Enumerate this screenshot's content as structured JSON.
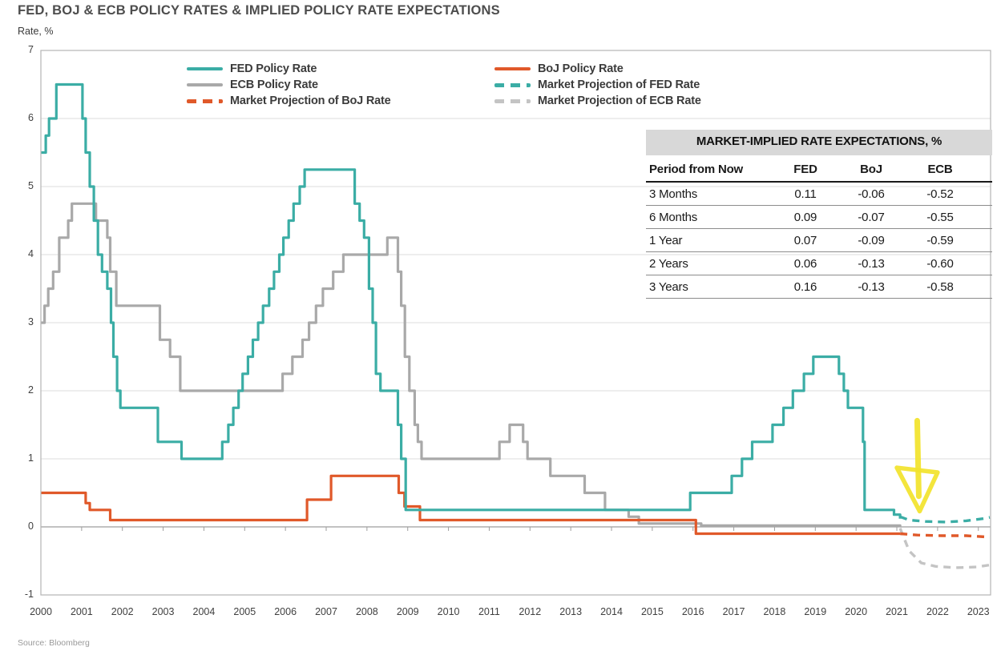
{
  "title": "FED, BOJ & ECB POLICY RATES & IMPLIED POLICY RATE EXPECTATIONS",
  "y_axis_title": "Rate, %",
  "source": "Source: Bloomberg",
  "legend": {
    "items": [
      {
        "label": "FED Policy Rate",
        "color": "#3bada5",
        "dashed": false
      },
      {
        "label": "ECB Policy Rate",
        "color": "#a9a9a9",
        "dashed": false
      },
      {
        "label": "Market Projection of BoJ Rate",
        "color": "#e0592a",
        "dashed": true
      },
      {
        "label": "BoJ Policy Rate",
        "color": "#e0592a",
        "dashed": false
      },
      {
        "label": "Market Projection of FED Rate",
        "color": "#3bada5",
        "dashed": true
      },
      {
        "label": "Market Projection of ECB Rate",
        "color": "#c4c4c4",
        "dashed": true
      }
    ]
  },
  "table": {
    "title": "MARKET-IMPLIED RATE EXPECTATIONS, %",
    "columns": [
      "Period from Now",
      "FED",
      "BoJ",
      "ECB"
    ],
    "rows": [
      {
        "period": "3 Months",
        "fed": "0.11",
        "boj": "-0.06",
        "ecb": "-0.52"
      },
      {
        "period": "6 Months",
        "fed": "0.09",
        "boj": "-0.07",
        "ecb": "-0.55"
      },
      {
        "period": "1 Year",
        "fed": "0.07",
        "boj": "-0.09",
        "ecb": "-0.59"
      },
      {
        "period": "2 Years",
        "fed": "0.06",
        "boj": "-0.13",
        "ecb": "-0.60"
      },
      {
        "period": "3 Years",
        "fed": "0.16",
        "boj": "-0.13",
        "ecb": "-0.58"
      }
    ]
  },
  "chart_data": {
    "type": "line",
    "title": "FED, BOJ & ECB POLICY RATES & IMPLIED POLICY RATE EXPECTATIONS",
    "ylabel": "Rate, %",
    "x_range": [
      2000,
      2023.3
    ],
    "y_range": [
      -1,
      7
    ],
    "y_ticks": [
      7,
      6,
      5,
      4,
      3,
      2,
      1,
      0,
      -1
    ],
    "x_ticks": [
      2000,
      2001,
      2002,
      2003,
      2004,
      2005,
      2006,
      2007,
      2008,
      2009,
      2010,
      2011,
      2012,
      2013,
      2014,
      2015,
      2016,
      2017,
      2018,
      2019,
      2020,
      2021,
      2022,
      2023
    ],
    "grid": "horizontal",
    "legend_position": "top",
    "series": [
      {
        "name": "ECB Policy Rate",
        "color": "#a9a9a9",
        "style": "solid",
        "step": true,
        "width": 3.2,
        "points": [
          [
            2000,
            3
          ],
          [
            2000.09,
            3.25
          ],
          [
            2000.18,
            3.5
          ],
          [
            2000.3,
            3.75
          ],
          [
            2000.45,
            4.25
          ],
          [
            2000.67,
            4.5
          ],
          [
            2000.76,
            4.75
          ],
          [
            2001.35,
            4.5
          ],
          [
            2001.63,
            4.25
          ],
          [
            2001.7,
            3.75
          ],
          [
            2001.85,
            3.25
          ],
          [
            2002.92,
            2.75
          ],
          [
            2003.17,
            2.5
          ],
          [
            2003.42,
            2
          ],
          [
            2005.93,
            2.25
          ],
          [
            2006.17,
            2.5
          ],
          [
            2006.42,
            2.75
          ],
          [
            2006.58,
            3
          ],
          [
            2006.75,
            3.25
          ],
          [
            2006.92,
            3.5
          ],
          [
            2007.17,
            3.75
          ],
          [
            2007.42,
            4
          ],
          [
            2008.5,
            4.25
          ],
          [
            2008.76,
            3.75
          ],
          [
            2008.84,
            3.25
          ],
          [
            2008.93,
            2.5
          ],
          [
            2009.04,
            2
          ],
          [
            2009.17,
            1.5
          ],
          [
            2009.25,
            1.25
          ],
          [
            2009.34,
            1
          ],
          [
            2011.25,
            1.25
          ],
          [
            2011.5,
            1.5
          ],
          [
            2011.83,
            1.25
          ],
          [
            2011.94,
            1
          ],
          [
            2012.5,
            0.75
          ],
          [
            2013.34,
            0.5
          ],
          [
            2013.84,
            0.25
          ],
          [
            2014.42,
            0.15
          ],
          [
            2014.67,
            0.05
          ],
          [
            2016.2,
            0.02
          ],
          [
            2021.08,
            0
          ]
        ]
      },
      {
        "name": "BoJ Policy Rate",
        "color": "#e0592a",
        "style": "solid",
        "step": true,
        "width": 3.2,
        "points": [
          [
            2000,
            0.5
          ],
          [
            2001.1,
            0.35
          ],
          [
            2001.2,
            0.25
          ],
          [
            2001.7,
            0.1
          ],
          [
            2006.53,
            0.4
          ],
          [
            2007.12,
            0.75
          ],
          [
            2008.78,
            0.5
          ],
          [
            2008.92,
            0.3
          ],
          [
            2009.3,
            0.1
          ],
          [
            2016.07,
            -0.1
          ],
          [
            2021.08,
            -0.1
          ]
        ]
      },
      {
        "name": "FED Policy Rate",
        "color": "#3bada5",
        "style": "solid",
        "step": true,
        "width": 3.2,
        "points": [
          [
            2000,
            5.5
          ],
          [
            2000.12,
            5.75
          ],
          [
            2000.2,
            6
          ],
          [
            2000.38,
            6.5
          ],
          [
            2001.02,
            6
          ],
          [
            2001.1,
            5.5
          ],
          [
            2001.2,
            5
          ],
          [
            2001.3,
            4.5
          ],
          [
            2001.4,
            4
          ],
          [
            2001.5,
            3.75
          ],
          [
            2001.63,
            3.5
          ],
          [
            2001.72,
            3
          ],
          [
            2001.78,
            2.5
          ],
          [
            2001.87,
            2
          ],
          [
            2001.95,
            1.75
          ],
          [
            2002.87,
            1.25
          ],
          [
            2003.45,
            1
          ],
          [
            2004.45,
            1.25
          ],
          [
            2004.6,
            1.5
          ],
          [
            2004.72,
            1.75
          ],
          [
            2004.85,
            2
          ],
          [
            2004.95,
            2.25
          ],
          [
            2005.08,
            2.5
          ],
          [
            2005.2,
            2.75
          ],
          [
            2005.33,
            3
          ],
          [
            2005.45,
            3.25
          ],
          [
            2005.6,
            3.5
          ],
          [
            2005.72,
            3.75
          ],
          [
            2005.85,
            4
          ],
          [
            2005.95,
            4.25
          ],
          [
            2006.08,
            4.5
          ],
          [
            2006.2,
            4.75
          ],
          [
            2006.35,
            5
          ],
          [
            2006.47,
            5.25
          ],
          [
            2007.7,
            4.75
          ],
          [
            2007.82,
            4.5
          ],
          [
            2007.93,
            4.25
          ],
          [
            2008.05,
            3.5
          ],
          [
            2008.14,
            3
          ],
          [
            2008.22,
            2.25
          ],
          [
            2008.33,
            2
          ],
          [
            2008.76,
            1.5
          ],
          [
            2008.84,
            1
          ],
          [
            2008.95,
            0.25
          ],
          [
            2015.93,
            0.5
          ],
          [
            2016.95,
            0.75
          ],
          [
            2017.2,
            1
          ],
          [
            2017.45,
            1.25
          ],
          [
            2017.95,
            1.5
          ],
          [
            2018.22,
            1.75
          ],
          [
            2018.45,
            2
          ],
          [
            2018.72,
            2.25
          ],
          [
            2018.95,
            2.5
          ],
          [
            2019.58,
            2.25
          ],
          [
            2019.7,
            2
          ],
          [
            2019.8,
            1.75
          ],
          [
            2020.17,
            1.25
          ],
          [
            2020.21,
            0.25
          ],
          [
            2020.93,
            0.18
          ],
          [
            2021.08,
            0.12
          ]
        ]
      },
      {
        "name": "Market Projection of ECB Rate",
        "color": "#c4c4c4",
        "style": "dashed",
        "step": false,
        "width": 3.4,
        "points": [
          [
            2021.08,
            -0.02
          ],
          [
            2021.3,
            -0.35
          ],
          [
            2021.6,
            -0.53
          ],
          [
            2021.95,
            -0.58
          ],
          [
            2022.45,
            -0.6
          ],
          [
            2022.95,
            -0.59
          ],
          [
            2023.28,
            -0.56
          ]
        ]
      },
      {
        "name": "Market Projection of BoJ Rate",
        "color": "#e0592a",
        "style": "dashed",
        "step": false,
        "width": 3.4,
        "points": [
          [
            2021.08,
            -0.1
          ],
          [
            2021.5,
            -0.12
          ],
          [
            2022.1,
            -0.13
          ],
          [
            2022.7,
            -0.13
          ],
          [
            2023.28,
            -0.15
          ]
        ]
      },
      {
        "name": "Market Projection of FED Rate",
        "color": "#3bada5",
        "style": "dashed",
        "step": false,
        "width": 3.4,
        "points": [
          [
            2021.08,
            0.15
          ],
          [
            2021.3,
            0.1
          ],
          [
            2021.7,
            0.08
          ],
          [
            2022.2,
            0.07
          ],
          [
            2022.7,
            0.09
          ],
          [
            2023.1,
            0.12
          ],
          [
            2023.28,
            0.14
          ]
        ]
      }
    ],
    "annotation_arrow": {
      "color": "#f2e32b",
      "x": 2021.5,
      "y_start": 1.56,
      "y_shaft_end": 0.45,
      "head_left": [
        2021.0,
        0.87
      ],
      "head_right": [
        2022.0,
        0.8
      ],
      "head_tip": [
        2021.56,
        0.23
      ]
    }
  }
}
